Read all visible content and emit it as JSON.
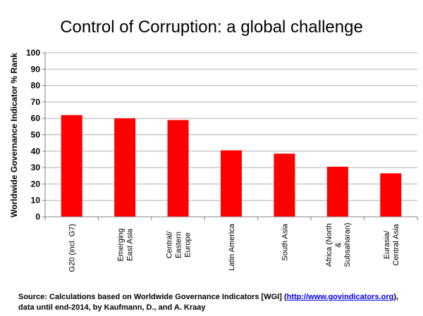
{
  "chart_data": {
    "type": "bar",
    "title": "Control of Corruption: a global challenge",
    "ylabel": "Worldwide Governance Indicator % Rank",
    "xlabel": "",
    "ylim": [
      0,
      100
    ],
    "yticks": [
      0,
      10,
      20,
      30,
      40,
      50,
      60,
      70,
      80,
      90,
      100
    ],
    "grid": true,
    "categories": [
      [
        "G20 (incl. G7)"
      ],
      [
        "Emerging",
        "East Asia"
      ],
      [
        "Central/",
        "Eastern",
        "Europe"
      ],
      [
        "Latin America"
      ],
      [
        "South Asia"
      ],
      [
        "Africa (North",
        "&",
        "Subsaharan)"
      ],
      [
        "Eurasia/",
        "Central Asia"
      ]
    ],
    "values": [
      62,
      60,
      59,
      40.5,
      38.5,
      30.5,
      26.5
    ],
    "bar_color": "#ff0000"
  },
  "source": {
    "prefix": "Source: Calculations based on Worldwide Governance Indicators [WGI] (",
    "link": "http://www.govindicators.org",
    "suffix": "),",
    "line2": "data until end-2014, by Kaufmann, D., and A. Kraay"
  }
}
